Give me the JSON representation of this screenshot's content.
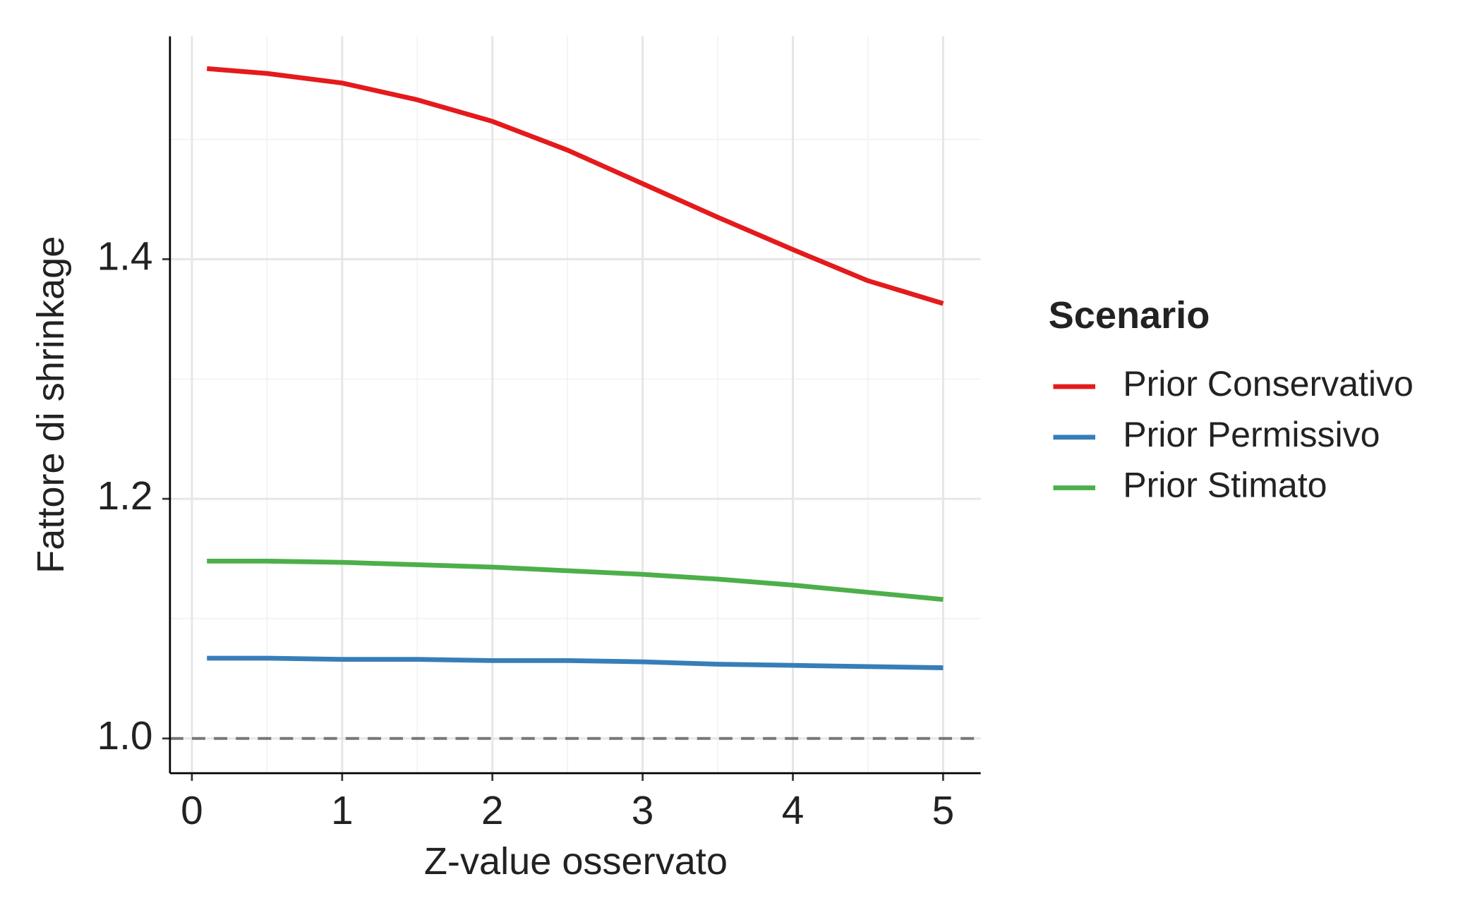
{
  "chart_data": {
    "type": "line",
    "x_label": "Z-value osservato",
    "y_label": "Fattore di shrinkage",
    "legend_title": "Scenario",
    "legend_position": "right",
    "grid": true,
    "xlim": [
      -0.146,
      5.25
    ],
    "ylim": [
      0.971,
      1.586
    ],
    "xticks": [
      0,
      1,
      2,
      3,
      4,
      5
    ],
    "yticks": [
      {
        "value": 1.0,
        "label": "1.0"
      },
      {
        "value": 1.2,
        "label": "1.2"
      },
      {
        "value": 1.4,
        "label": "1.4"
      }
    ],
    "minor_xticks": [
      0.5,
      1.5,
      2.5,
      3.5,
      4.5
    ],
    "minor_yticks": [
      1.1,
      1.3,
      1.5
    ],
    "reference_line": 1.0,
    "x": [
      0.1,
      0.5,
      1,
      1.5,
      2,
      2.5,
      3,
      3.5,
      4,
      4.5,
      5
    ],
    "series": [
      {
        "name": "Prior Conservativo",
        "color": "#e41a1c",
        "values": [
          1.559,
          1.555,
          1.547,
          1.533,
          1.515,
          1.491,
          1.463,
          1.435,
          1.408,
          1.382,
          1.363
        ]
      },
      {
        "name": "Prior Permissivo",
        "color": "#377eb8",
        "values": [
          1.067,
          1.067,
          1.066,
          1.066,
          1.065,
          1.065,
          1.064,
          1.062,
          1.061,
          1.06,
          1.059
        ]
      },
      {
        "name": "Prior Stimato",
        "color": "#4daf4a",
        "values": [
          1.148,
          1.148,
          1.147,
          1.145,
          1.143,
          1.14,
          1.137,
          1.133,
          1.128,
          1.122,
          1.116
        ]
      }
    ]
  }
}
